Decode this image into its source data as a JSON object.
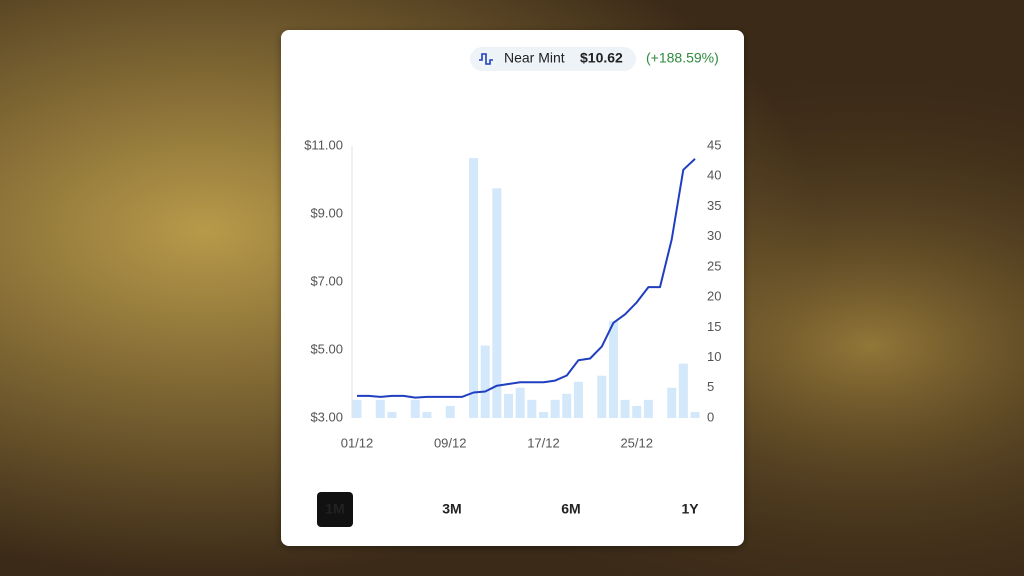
{
  "header": {
    "label": "Near Mint",
    "price": "$10.62",
    "change": "(+188.59%)"
  },
  "chart_data": {
    "type": "bar",
    "categories": [
      "01/12",
      null,
      null,
      null,
      null,
      null,
      null,
      null,
      "09/12",
      null,
      null,
      null,
      null,
      null,
      null,
      null,
      "17/12",
      null,
      null,
      null,
      null,
      null,
      null,
      null,
      "25/12",
      null,
      null,
      null,
      null,
      null
    ],
    "series": [
      {
        "type": "bar",
        "axis": "y2",
        "color": "#d3e8fb",
        "values": [
          3,
          0,
          3,
          1,
          0,
          3,
          1,
          0,
          2,
          0,
          43,
          12,
          38,
          4,
          5,
          3,
          1,
          3,
          4,
          6,
          0,
          7,
          16,
          3,
          2,
          3,
          0,
          5,
          9,
          1
        ]
      },
      {
        "type": "line",
        "color": "#1f3fbf",
        "values": [
          3.65,
          3.65,
          3.62,
          3.65,
          3.65,
          3.6,
          3.62,
          3.62,
          3.62,
          3.62,
          3.75,
          3.78,
          3.95,
          4.0,
          4.05,
          4.05,
          4.05,
          4.1,
          4.25,
          4.7,
          4.75,
          5.1,
          5.8,
          6.05,
          6.4,
          6.85,
          6.85,
          8.25,
          10.3,
          10.62
        ]
      }
    ],
    "ylim": [
      3,
      11
    ],
    "yticks": [
      {
        "value": 3,
        "label": "$3.00"
      },
      {
        "value": 5,
        "label": "$5.00"
      },
      {
        "value": 7,
        "label": "$7.00"
      },
      {
        "value": 9,
        "label": "$9.00"
      },
      {
        "value": 11,
        "label": "$11.00"
      }
    ],
    "y2lim": [
      0,
      45
    ],
    "y2ticks": [
      0,
      5,
      10,
      15,
      20,
      25,
      30,
      35,
      40,
      45
    ]
  },
  "ranges": [
    "1M",
    "3M",
    "6M",
    "1Y"
  ],
  "active_range_index": 0
}
